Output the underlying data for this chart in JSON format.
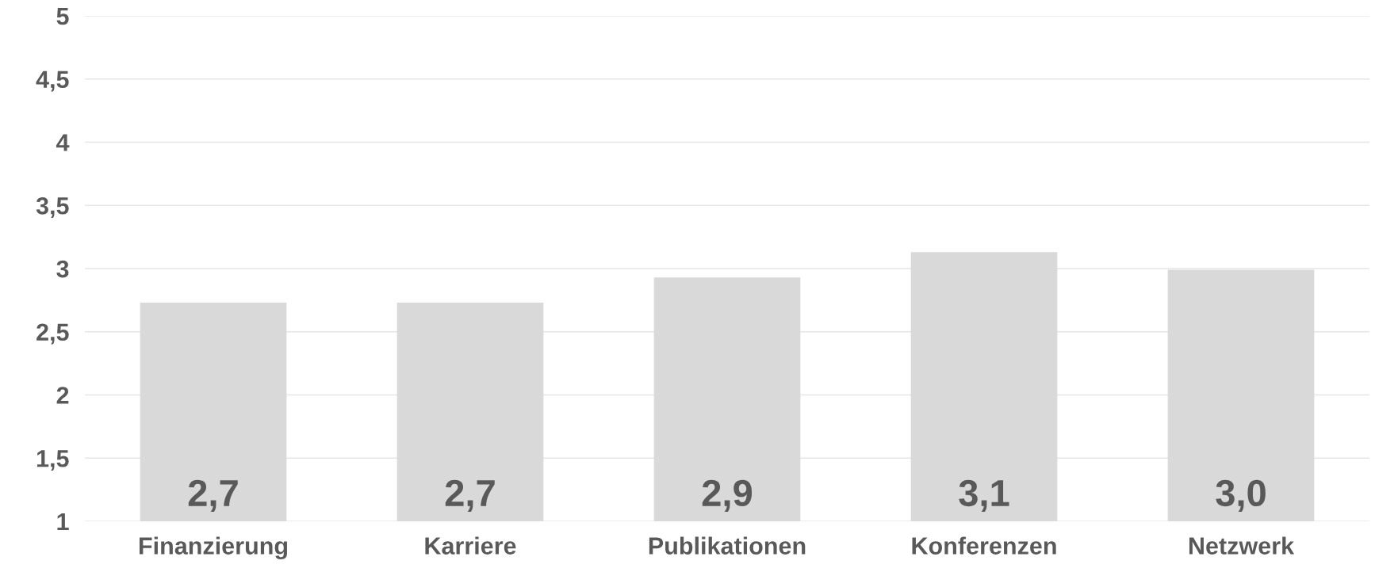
{
  "chart_data": {
    "type": "bar",
    "categories": [
      "Finanzierung",
      "Karriere",
      "Publikationen",
      "Konferenzen",
      "Netzwerk"
    ],
    "values": [
      2.73,
      2.73,
      2.93,
      3.13,
      2.99
    ],
    "value_labels": [
      "2,7",
      "2,7",
      "2,9",
      "3,1",
      "3,0"
    ],
    "color": "#d9d9d9",
    "ylim": [
      1,
      5
    ],
    "yticks": [
      1,
      {
        "value": 1.5,
        "label": "1,5"
      },
      2,
      {
        "value": 2.5,
        "label": "2,5"
      },
      3,
      {
        "value": 3.5,
        "label": "3,5"
      },
      4,
      {
        "value": 4.5,
        "label": "4,5"
      },
      5
    ],
    "grid": "y"
  }
}
